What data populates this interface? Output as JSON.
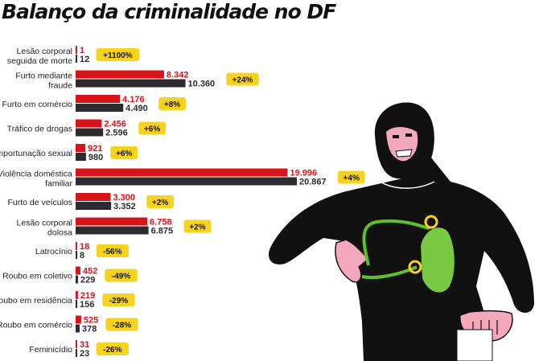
{
  "title": "Balanço da criminalidade no DF",
  "colors": {
    "year_a": "#d7141a",
    "year_b": "#2e2b30",
    "badge": "#f7d31e",
    "label_a": "#d7141a",
    "label_b": "#2e2b30"
  },
  "chart_data": {
    "type": "bar",
    "orientation": "horizontal",
    "title": "Balanço da criminalidade no DF",
    "categories": [
      [
        "Lesão corporal",
        "seguida de morte"
      ],
      [
        "Furto mediante",
        "fraude"
      ],
      [
        "Furto em comércio"
      ],
      [
        "Tráfico de drogas"
      ],
      [
        "Importunação sexual"
      ],
      [
        "Violência doméstica",
        "familiar"
      ],
      [
        "Furto de veículos"
      ],
      [
        "Lesão corporal",
        "dolosa"
      ],
      [
        "Latrocínio"
      ],
      [
        "Roubo em coletivo"
      ],
      [
        "Roubo em residência"
      ],
      [
        "Roubo em comércio"
      ],
      [
        "Feminicídio"
      ]
    ],
    "series": [
      {
        "color": "#d7141a",
        "values": [
          1,
          8342,
          4176,
          2456,
          921,
          19996,
          3300,
          6758,
          18,
          452,
          219,
          525,
          31
        ],
        "labels": [
          "1",
          "8.342",
          "4.176",
          "2.456",
          "921",
          "19.996",
          "3.300",
          "6.758",
          "18",
          "452",
          "219",
          "525",
          "31"
        ]
      },
      {
        "color": "#2e2b30",
        "values": [
          12,
          10360,
          4490,
          2596,
          980,
          20867,
          3352,
          6875,
          8,
          229,
          156,
          378,
          23
        ],
        "labels": [
          "12",
          "10.360",
          "4.490",
          "2.596",
          "980",
          "20.867",
          "3.352",
          "6.875",
          "8",
          "229",
          "156",
          "378",
          "23"
        ]
      }
    ],
    "changes": [
      "+1100%",
      "+24%",
      "+8%",
      "+6%",
      "+6%",
      "+4%",
      "+2%",
      "+2%",
      "-56%",
      "-49%",
      "-29%",
      "-28%",
      "-26%"
    ],
    "xlim": [
      0,
      20867
    ],
    "grid": false,
    "legend": "none"
  }
}
